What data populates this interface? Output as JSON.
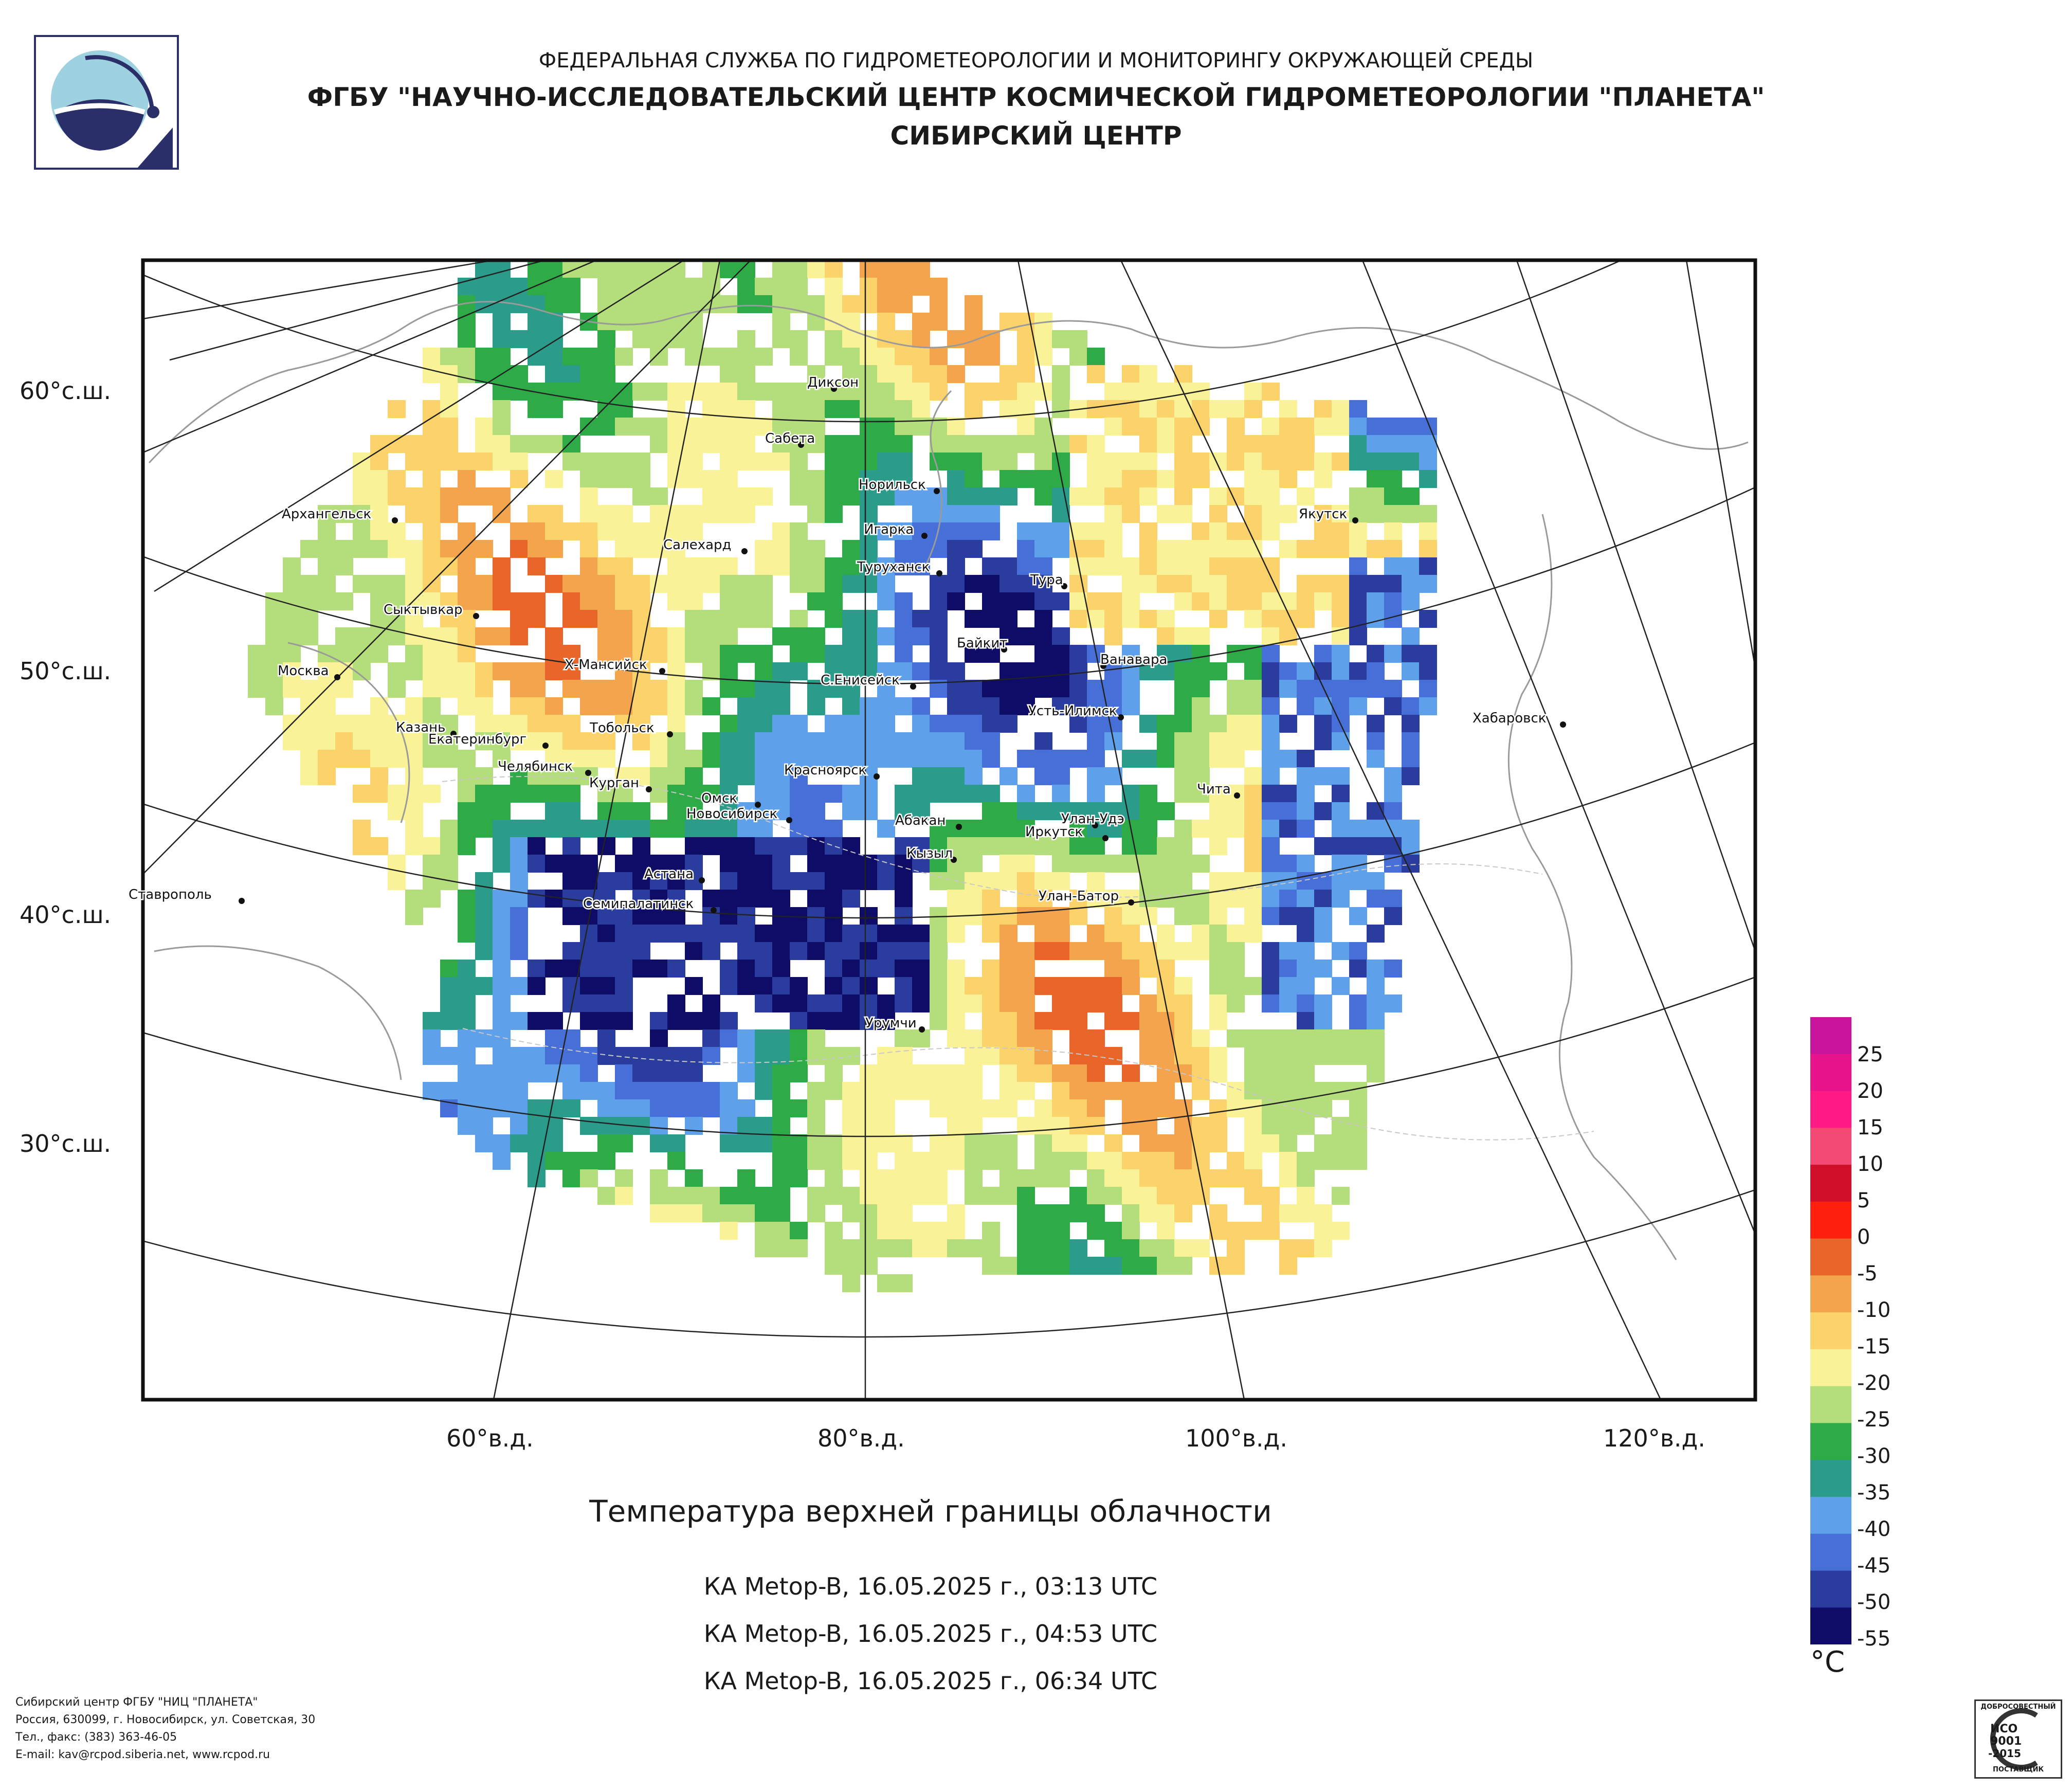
{
  "header": {
    "line1": "ФЕДЕРАЛЬНАЯ СЛУЖБА ПО ГИДРОМЕТЕОРОЛОГИИ И МОНИТОРИНГУ ОКРУЖАЮЩЕЙ СРЕДЫ",
    "line2": "ФГБУ \"НАУЧНО-ИССЛЕДОВАТЕЛЬСКИЙ ЦЕНТР КОСМИЧЕСКОЙ ГИДРОМЕТЕОРОЛОГИИ \"ПЛАНЕТА\"",
    "line3": "СИБИРСКИЙ ЦЕНТР"
  },
  "map": {
    "title": "Температура верхней границы облачности",
    "latitude_labels": [
      "60°с.ш.",
      "50°с.ш.",
      "40°с.ш.",
      "30°с.ш."
    ],
    "longitude_labels": [
      "60°в.д.",
      "80°в.д.",
      "100°в.д.",
      "120°в.д."
    ],
    "cities": [
      "Диксон",
      "Сабета",
      "Норильск",
      "Игарка",
      "Туруханск",
      "Архангельск",
      "Салехард",
      "Сыктывкар",
      "Тура",
      "Якутск",
      "Байкит",
      "Ванавара",
      "Х-Мансийск",
      "С.Енисейск",
      "Усть-Илимск",
      "Москва",
      "Казань",
      "Екатеринбург",
      "Тобольск",
      "Челябинск",
      "Курган",
      "Омск",
      "Новосибирск",
      "Красноярск",
      "Абакан",
      "Иркутск",
      "Улан-Удэ",
      "Чита",
      "Хабаровск",
      "Кызыл",
      "Астана",
      "Семипалатинск",
      "Улан-Батор",
      "Ставрополь",
      "Урумчи"
    ]
  },
  "passes": [
    "КА Metop-B, 16.05.2025 г., 03:13 UTC",
    "КА Metop-B, 16.05.2025 г., 04:53 UTC",
    "КА Metop-B, 16.05.2025 г., 06:34 UTC"
  ],
  "colorbar": {
    "ticks": [
      "25",
      "20",
      "15",
      "10",
      "5",
      "0",
      "-5",
      "-10",
      "-15",
      "-20",
      "-25",
      "-30",
      "-35",
      "-40",
      "-45",
      "-50",
      "-55"
    ],
    "colors": [
      "#c8149c",
      "#e8148c",
      "#ff1a86",
      "#f24a72",
      "#d0102a",
      "#ff2010",
      "#e8662a",
      "#f4a44c",
      "#fcd26a",
      "#faf296",
      "#b4de7c",
      "#2eaa46",
      "#2c9c8a",
      "#5ea0ea",
      "#4670d8",
      "#2a3c9e",
      "#0e0c66"
    ],
    "unit": "°C"
  },
  "footer": {
    "line1": "Сибирский центр ФГБУ \"НИЦ \"ПЛАНЕТА\"",
    "line2": "Россия, 630099, г. Новосибирск, ул. Советская, 30",
    "line3": "Тел., факс: (383) 363-46-05",
    "line4": "E-mail: kav@rcpod.siberia.net, www.rcpod.ru"
  },
  "iso_badge": {
    "top": "ДОБРОСОВЕСТНЫЙ",
    "mid1": "ИСО",
    "mid2": "9001",
    "mid3": "-2015",
    "bottom": "ПОСТАВЩИК"
  }
}
